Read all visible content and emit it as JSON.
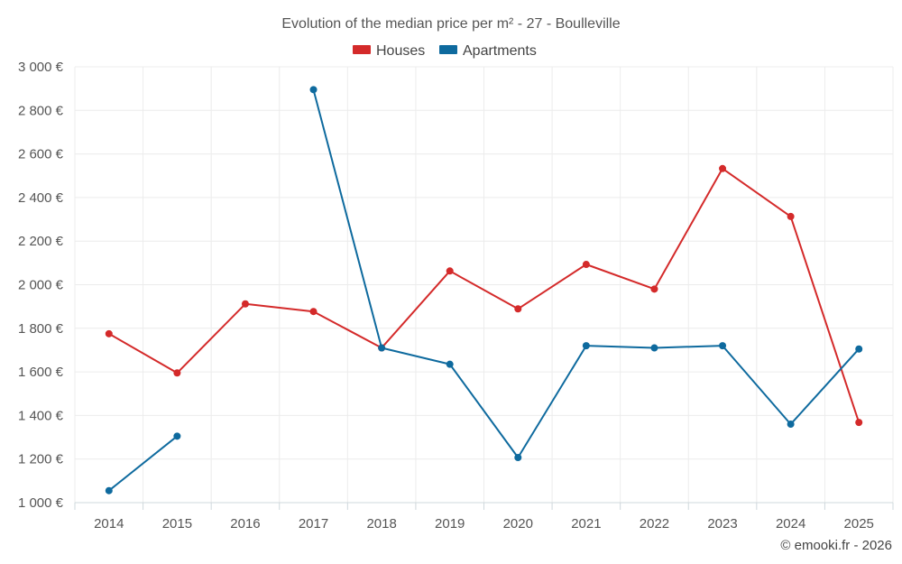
{
  "chart_data": {
    "type": "line",
    "title": "Evolution of the median price per m² - 27 - Boulleville",
    "categories": [
      "2014",
      "2015",
      "2016",
      "2017",
      "2018",
      "2019",
      "2020",
      "2021",
      "2022",
      "2023",
      "2024",
      "2025"
    ],
    "y_tick_labels": [
      "1 000 €",
      "1 200 €",
      "1 400 €",
      "1 600 €",
      "1 800 €",
      "2 000 €",
      "2 200 €",
      "2 400 €",
      "2 600 €",
      "2 800 €",
      "3 000 €"
    ],
    "y_ticks": [
      1000,
      1200,
      1400,
      1600,
      1800,
      2000,
      2200,
      2400,
      2600,
      2800,
      3000
    ],
    "ylim": [
      1000,
      3000
    ],
    "grid": true,
    "legend_position": "top-center",
    "series": [
      {
        "name": "Houses",
        "color": "#d42a2a",
        "values": [
          1775,
          1595,
          1912,
          1877,
          1710,
          2063,
          1889,
          2093,
          1980,
          2533,
          2313,
          1368
        ]
      },
      {
        "name": "Apartments",
        "color": "#0e6a9e",
        "values": [
          1055,
          1305,
          null,
          2895,
          1710,
          1635,
          1207,
          1720,
          1710,
          1720,
          1360,
          1705
        ]
      }
    ],
    "credit": "© emooki.fr - 2026"
  }
}
